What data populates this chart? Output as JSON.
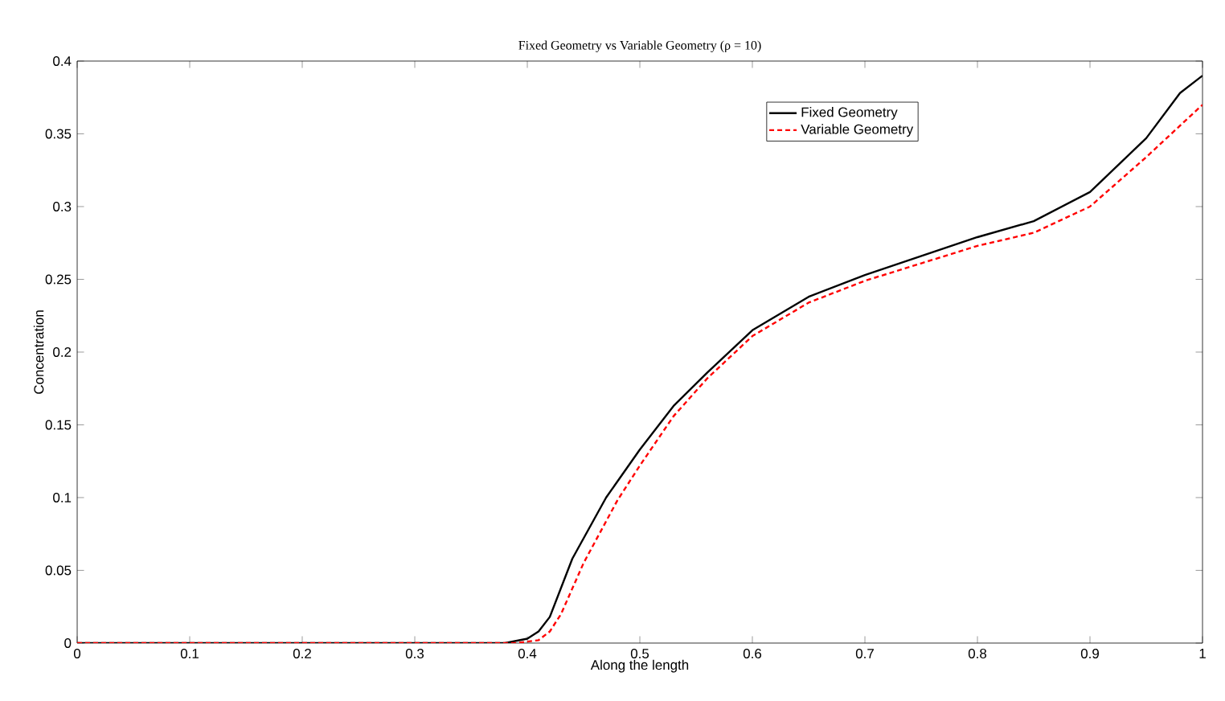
{
  "chart_data": {
    "type": "line",
    "title": "Fixed Geometry vs Variable Geometry (ρ = 10)",
    "xlabel": "Along the length",
    "ylabel": "Concentration",
    "xlim": [
      0,
      1
    ],
    "ylim": [
      0,
      0.4
    ],
    "xticks": [
      0,
      0.1,
      0.2,
      0.3,
      0.4,
      0.5,
      0.6,
      0.7,
      0.8,
      0.9,
      1
    ],
    "yticks": [
      0,
      0.05,
      0.1,
      0.15,
      0.2,
      0.25,
      0.3,
      0.35,
      0.4
    ],
    "grid": false,
    "legend": "top",
    "marker": "none",
    "series": [
      {
        "name": "Fixed Geometry",
        "color": "#000000",
        "line_style": "solid",
        "x": [
          0,
          0.38,
          0.4,
          0.41,
          0.42,
          0.44,
          0.47,
          0.5,
          0.53,
          0.56,
          0.6,
          0.65,
          0.7,
          0.75,
          0.8,
          0.85,
          0.9,
          0.95,
          0.98,
          1.0
        ],
        "values": [
          0,
          0,
          0.003,
          0.008,
          0.018,
          0.058,
          0.1,
          0.133,
          0.163,
          0.186,
          0.215,
          0.238,
          0.253,
          0.266,
          0.279,
          0.29,
          0.31,
          0.347,
          0.378,
          0.39
        ]
      },
      {
        "name": "Variable Geometry",
        "color": "#ff0000",
        "line_style": "dashed",
        "x": [
          0,
          0.39,
          0.41,
          0.42,
          0.43,
          0.45,
          0.48,
          0.5,
          0.53,
          0.56,
          0.6,
          0.65,
          0.7,
          0.75,
          0.8,
          0.85,
          0.9,
          0.95,
          1.0
        ],
        "values": [
          0,
          0,
          0.002,
          0.008,
          0.02,
          0.055,
          0.098,
          0.122,
          0.156,
          0.182,
          0.211,
          0.234,
          0.249,
          0.261,
          0.273,
          0.282,
          0.3,
          0.334,
          0.37
        ]
      }
    ]
  }
}
